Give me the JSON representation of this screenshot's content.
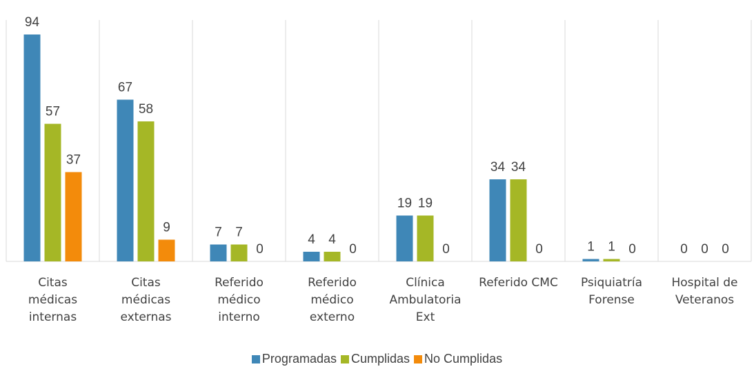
{
  "chart_data": {
    "type": "bar",
    "categories": [
      "Citas médicas internas",
      "Citas médicas externas",
      "Referido médico interno",
      "Referido médico externo",
      "Clínica Ambulatoria Ext",
      "Referido CMC",
      "Psiquiatría Forense",
      "Hospital de Veteranos"
    ],
    "series": [
      {
        "name": "Programadas",
        "color": "#3f87b7",
        "values": [
          94,
          67,
          7,
          4,
          19,
          34,
          1,
          0
        ]
      },
      {
        "name": "Cumplidas",
        "color": "#a5b726",
        "values": [
          57,
          58,
          7,
          4,
          19,
          34,
          1,
          0
        ]
      },
      {
        "name": "No Cumplidas",
        "color": "#f38b0b",
        "values": [
          37,
          9,
          0,
          0,
          0,
          0,
          0,
          0
        ]
      }
    ],
    "ylim": [
      0,
      100
    ],
    "legend": "bottom"
  }
}
